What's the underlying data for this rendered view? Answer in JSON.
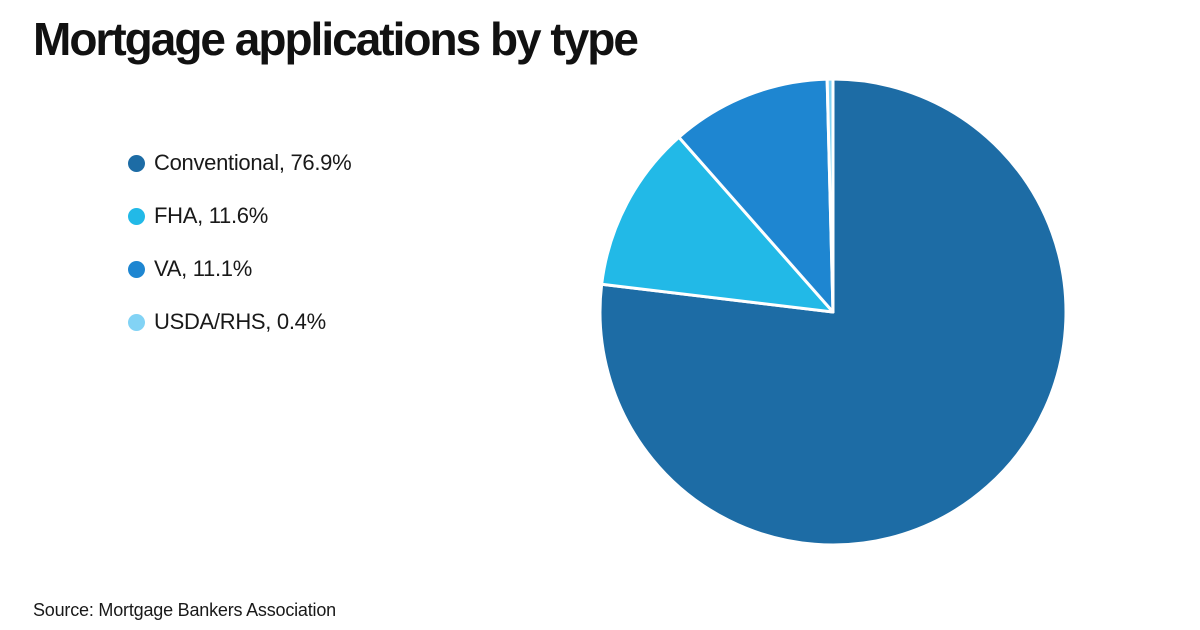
{
  "header": {
    "title": "Mortgage applications by type"
  },
  "footer": {
    "source": "Source: Mortgage Bankers Association"
  },
  "chart_data": {
    "type": "pie",
    "title": "Mortgage applications by type",
    "legend_position": "left",
    "start_angle_deg": 0,
    "direction": "clockwise",
    "slice_separator_color": "#ffffff",
    "background_color": "#ffffff",
    "series": [
      {
        "label": "Conventional",
        "value": 76.9,
        "value_display": "76.9%",
        "color": "#1D6CA5"
      },
      {
        "label": "FHA",
        "value": 11.6,
        "value_display": "11.6%",
        "color": "#22B9E7"
      },
      {
        "label": "VA",
        "value": 11.1,
        "value_display": "11.1%",
        "color": "#1E86D1"
      },
      {
        "label": "USDA/RHS",
        "value": 0.4,
        "value_display": "0.4%",
        "color": "#82D3F5"
      }
    ]
  }
}
